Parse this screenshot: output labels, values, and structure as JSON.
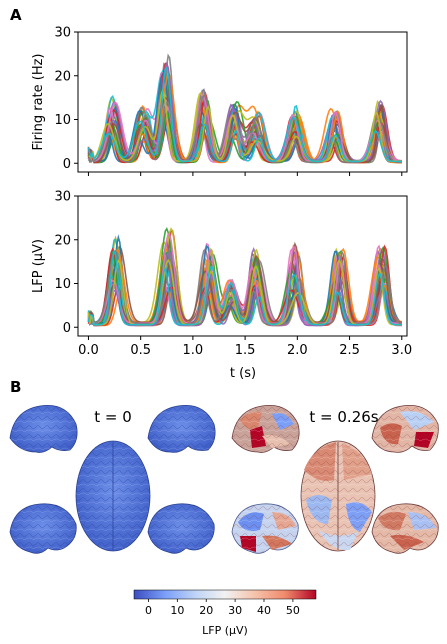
{
  "panel_labels": [
    "A",
    "B"
  ],
  "chart_data": [
    {
      "type": "line",
      "panel": "A",
      "ylabel": "Firing rate (Hz)",
      "xlabel": "",
      "xlim": [
        -0.1,
        3.05
      ],
      "ylim": [
        -2,
        30
      ],
      "yticks": [
        0,
        10,
        20,
        30
      ],
      "xticks": [
        0.0,
        0.5,
        1.0,
        1.5,
        2.0,
        2.5,
        3.0
      ],
      "grid": false,
      "n_series": 30,
      "peak_times": [
        0.22,
        0.52,
        0.74,
        1.11,
        1.4,
        1.6,
        1.98,
        2.36,
        2.78
      ],
      "peak_amplitudes": [
        15,
        13,
        24.5,
        17,
        14,
        12,
        13,
        12,
        14
      ],
      "baseline": 0.5
    },
    {
      "type": "line",
      "panel": "A",
      "ylabel": "LFP (μV)",
      "xlabel": "t (s)",
      "xlim": [
        -0.1,
        3.05
      ],
      "ylim": [
        -2,
        30
      ],
      "yticks": [
        0,
        10,
        20,
        30
      ],
      "xticks": [
        0.0,
        0.5,
        1.0,
        1.5,
        2.0,
        2.5,
        3.0
      ],
      "xtick_labels": [
        "0.0",
        "0.5",
        "1.0",
        "1.5",
        "2.0",
        "2.5",
        "3.0"
      ],
      "grid": false,
      "n_series": 30,
      "peak_times": [
        0.27,
        0.76,
        1.15,
        1.36,
        1.6,
        1.98,
        2.4,
        2.81
      ],
      "peak_amplitudes": [
        20,
        22,
        19.5,
        10,
        17,
        18,
        17,
        18
      ],
      "baseline": 1
    }
  ],
  "brain_panel": {
    "time_left": "t = 0",
    "time_right": "t = 0.26s",
    "colorbar": {
      "label": "LFP (μV)",
      "ticks": [
        "0",
        "10",
        "20",
        "30",
        "40",
        "50"
      ],
      "tick_values": [
        0,
        10,
        20,
        30,
        40,
        50
      ],
      "range": [
        -5,
        58
      ],
      "colors": [
        "#3b4cc0",
        "#7b9ff9",
        "#c0d4f5",
        "#f2f2f2",
        "#f5c4ad",
        "#f08a6c",
        "#b40426"
      ]
    }
  }
}
